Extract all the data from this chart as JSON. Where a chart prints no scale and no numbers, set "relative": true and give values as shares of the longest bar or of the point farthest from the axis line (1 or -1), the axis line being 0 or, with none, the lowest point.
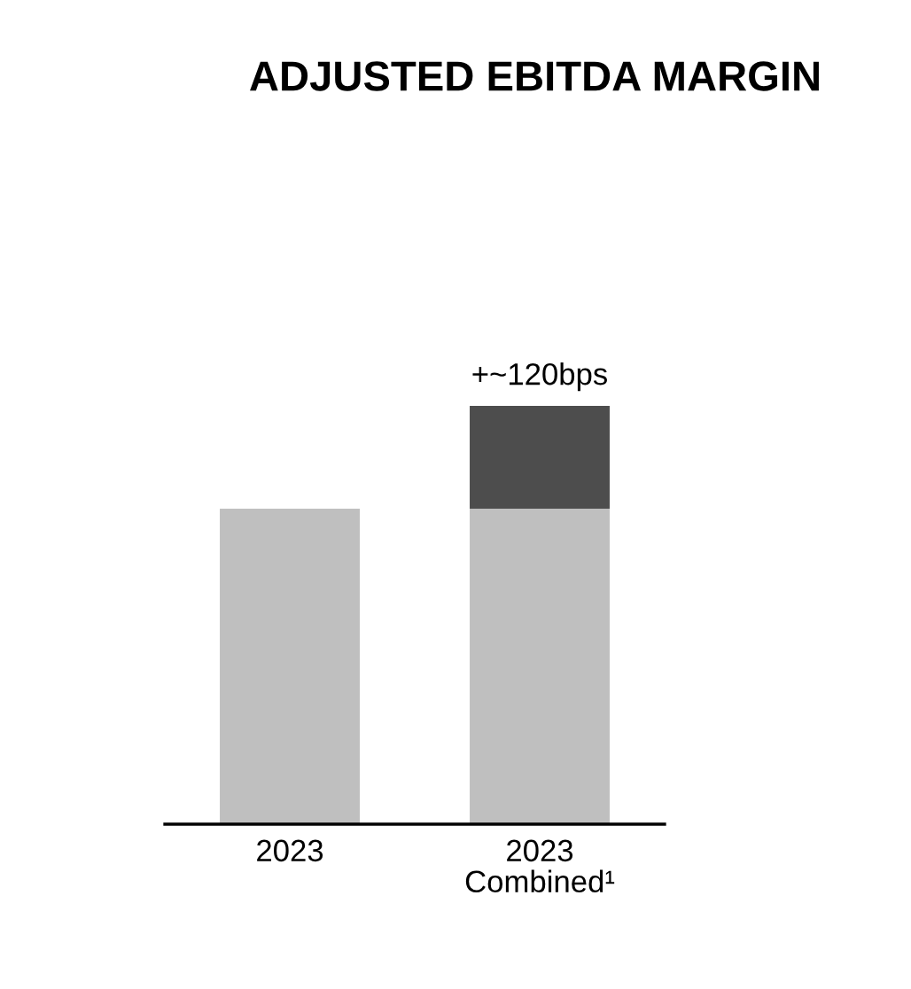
{
  "chart_data": {
    "type": "bar",
    "title": "ADJUSTED EBITDA MARGIN",
    "relative": true,
    "stacked": true,
    "categories": [
      "2023",
      "2023\nCombined¹"
    ],
    "series": [
      {
        "color": "#bfbfbf",
        "values": [
          0.754,
          0.754
        ]
      },
      {
        "color": "#4d4d4d",
        "values": [
          null,
          0.246
        ]
      }
    ],
    "annotations": [
      {
        "text": "+~120bps",
        "x": "2023\nCombined¹",
        "y": 1
      }
    ]
  }
}
